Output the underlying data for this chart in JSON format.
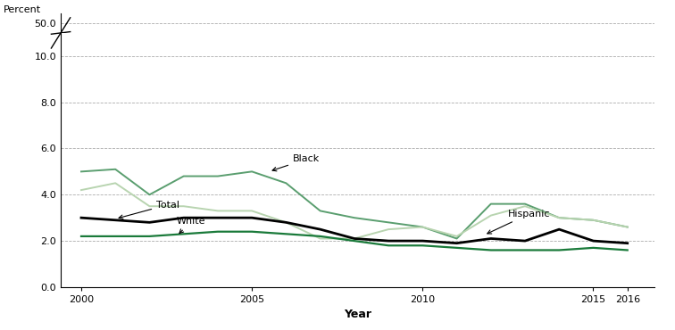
{
  "years": [
    2000,
    2001,
    2002,
    2003,
    2004,
    2005,
    2006,
    2007,
    2008,
    2009,
    2010,
    2011,
    2012,
    2013,
    2014,
    2015,
    2016
  ],
  "total": [
    3.0,
    2.9,
    2.8,
    3.0,
    3.0,
    3.0,
    2.8,
    2.5,
    2.1,
    2.0,
    2.0,
    1.9,
    2.1,
    2.0,
    2.5,
    2.0,
    1.9
  ],
  "white": [
    2.2,
    2.2,
    2.2,
    2.3,
    2.4,
    2.4,
    2.3,
    2.2,
    2.0,
    1.8,
    1.8,
    1.7,
    1.6,
    1.6,
    1.6,
    1.7,
    1.6
  ],
  "black": [
    5.0,
    5.1,
    4.0,
    4.8,
    4.8,
    5.0,
    4.5,
    3.3,
    3.0,
    2.8,
    2.6,
    2.1,
    3.6,
    3.6,
    3.0,
    2.9,
    2.6
  ],
  "hispanic": [
    4.2,
    4.5,
    3.5,
    3.5,
    3.3,
    3.3,
    2.8,
    2.1,
    2.1,
    2.5,
    2.6,
    2.2,
    3.1,
    3.5,
    3.0,
    2.9,
    2.6
  ],
  "total_color": "#000000",
  "white_color": "#1a7a3a",
  "black_color": "#5a9e6f",
  "hispanic_color": "#b8d4b0",
  "total_lw": 2.0,
  "white_lw": 1.6,
  "black_lw": 1.4,
  "hispanic_lw": 1.4,
  "xlabel": "Year",
  "ylabel": "Percent",
  "xticks": [
    2000,
    2005,
    2010,
    2015,
    2016
  ],
  "xtick_labels": [
    "2000",
    "2005",
    "2010",
    "2015",
    "2016"
  ],
  "xlim": [
    1999.4,
    2016.8
  ]
}
